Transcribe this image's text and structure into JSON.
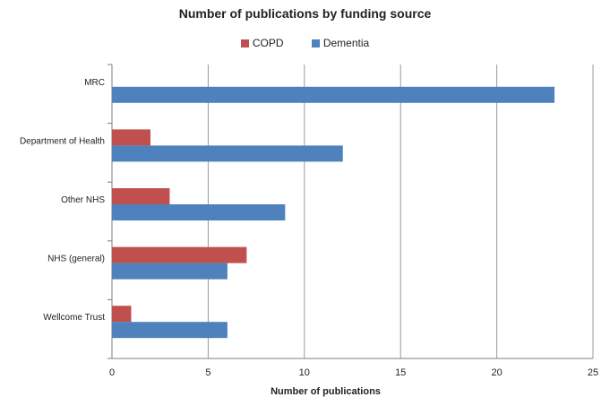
{
  "chart_data": {
    "type": "bar",
    "orientation": "horizontal",
    "title": "Number of publications by funding source",
    "xlabel": "Number of publications",
    "ylabel": "",
    "xlim": [
      0,
      25
    ],
    "xticks": [
      0,
      5,
      10,
      15,
      20,
      25
    ],
    "grid": true,
    "legend_position": "top",
    "categories": [
      "MRC",
      "Department of Health",
      "Other NHS",
      "NHS (general)",
      "Wellcome Trust"
    ],
    "series": [
      {
        "name": "COPD",
        "color": "#c0504d",
        "values": [
          0,
          2,
          3,
          7,
          1
        ]
      },
      {
        "name": "Dementia",
        "color": "#4f81bd",
        "values": [
          23,
          12,
          9,
          6,
          6
        ]
      }
    ]
  }
}
